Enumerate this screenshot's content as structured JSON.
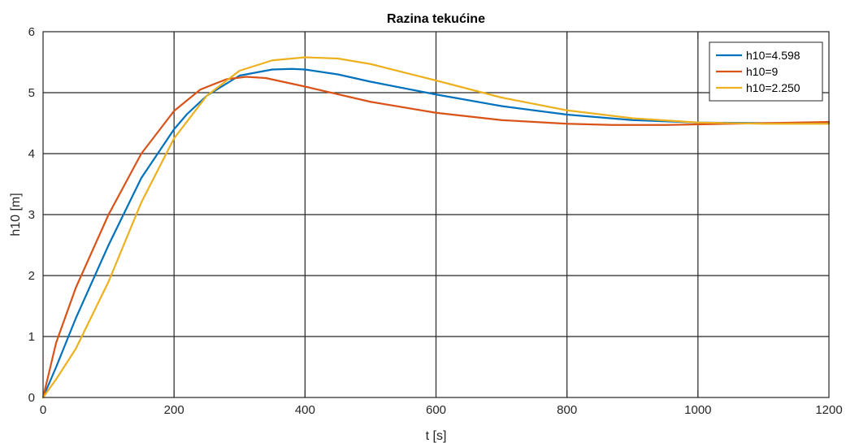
{
  "chart_data": {
    "type": "line",
    "title": "Razina tekućine",
    "xlabel": "t [s]",
    "ylabel": "h10 [m]",
    "xlim": [
      0,
      1200
    ],
    "ylim": [
      0,
      6
    ],
    "xticks": [
      0,
      200,
      400,
      600,
      800,
      1000,
      1200
    ],
    "yticks": [
      0,
      1,
      2,
      3,
      4,
      5,
      6
    ],
    "xtick_labels": [
      "0",
      "200",
      "400",
      "600",
      "800",
      "1000",
      "1200"
    ],
    "ytick_labels": [
      "0",
      "1",
      "2",
      "3",
      "4",
      "5",
      "6"
    ],
    "grid": true,
    "legend_position": "top-right",
    "series": [
      {
        "name": "h10=4.598",
        "color": "#0072BD",
        "x": [
          0,
          20,
          50,
          100,
          150,
          200,
          220,
          250,
          300,
          350,
          380,
          400,
          450,
          500,
          600,
          700,
          800,
          900,
          1000,
          1100,
          1200
        ],
        "y": [
          0,
          0.5,
          1.3,
          2.5,
          3.6,
          4.4,
          4.65,
          4.95,
          5.28,
          5.38,
          5.39,
          5.38,
          5.3,
          5.18,
          4.97,
          4.78,
          4.64,
          4.55,
          4.51,
          4.5,
          4.5
        ]
      },
      {
        "name": "h10=9",
        "color": "#D95319",
        "x": [
          0,
          20,
          50,
          100,
          150,
          200,
          240,
          280,
          310,
          340,
          400,
          500,
          600,
          700,
          800,
          870,
          950,
          1050,
          1200
        ],
        "y": [
          0,
          0.9,
          1.8,
          3.0,
          4.0,
          4.7,
          5.05,
          5.22,
          5.26,
          5.24,
          5.1,
          4.85,
          4.67,
          4.55,
          4.49,
          4.47,
          4.47,
          4.49,
          4.52
        ]
      },
      {
        "name": "h10=2.250",
        "color": "#EDB120",
        "x": [
          0,
          20,
          50,
          100,
          150,
          200,
          250,
          300,
          350,
          400,
          450,
          500,
          600,
          700,
          800,
          900,
          1000,
          1100,
          1200
        ],
        "y": [
          0,
          0.3,
          0.8,
          1.9,
          3.2,
          4.25,
          4.95,
          5.36,
          5.53,
          5.58,
          5.56,
          5.47,
          5.2,
          4.92,
          4.71,
          4.58,
          4.51,
          4.49,
          4.49
        ]
      }
    ]
  }
}
